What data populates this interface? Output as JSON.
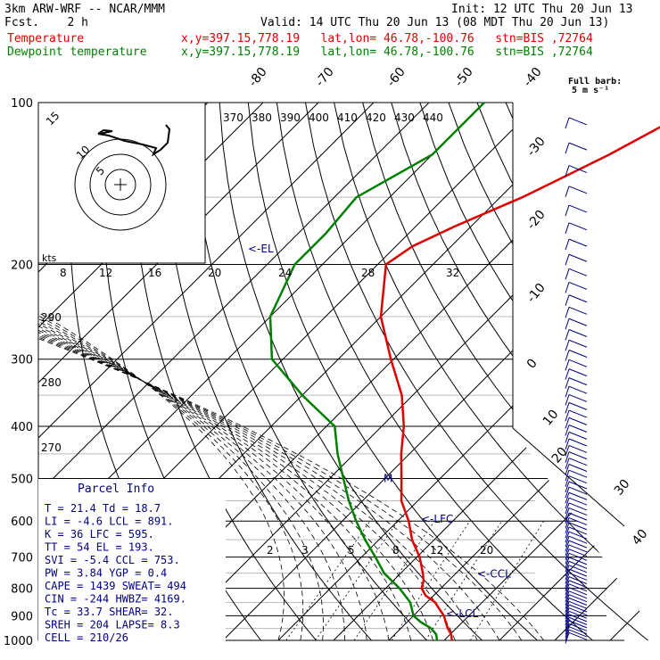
{
  "header": {
    "model": "3km ARW-WRF -- NCAR/MMM",
    "fcst": "Fcst.    2 h",
    "init": "Init: 12 UTC Thu 20 Jun 13",
    "valid": "Valid: 14 UTC Thu 20 Jun 13 (08 MDT Thu 20 Jun 13)",
    "temp_label": "Temperature",
    "dew_label": "Dewpoint temperature",
    "loc_info": "x,y=397.15,778.19   lat,lon= 46.78,-100.76   stn=BIS ,72764"
  },
  "colors": {
    "temperature": "#e00000",
    "dewpoint": "#008000",
    "annotations": "#000080"
  },
  "barb_legend": {
    "title": "Full barb:",
    "value": "5 m s⁻¹"
  },
  "annotations": {
    "el": "<-EL",
    "lfc": "<-LFC",
    "ccl": "<-CCL",
    "lcl": "<-LCL",
    "m": "M"
  },
  "hodograph": {
    "label": "kts",
    "rings": [
      "5",
      "10",
      "15"
    ]
  },
  "parcel_info": {
    "title": "Parcel Info",
    "rows": [
      "T  =   21.4  Td =  18.7",
      "LI =   -4.6  LCL =  891.",
      "K  =     36  LFC =  595.",
      "TT =     54  EL  =  193.",
      "SVI =  -5.4  CCL =  753.",
      "PW =   3.84  YGP =   0.4",
      "CAPE =  1439  SWEAT=  494",
      "CIN =   -244  HWBZ= 4169.",
      "Tc =   33.7  SHEAR=   32.",
      "SREH =   204  LAPSE=   8.3",
      "CELL = 210/26"
    ]
  },
  "chart_data": {
    "type": "skew-t",
    "yscale": "log",
    "pressure_ticks": [
      "100",
      "200",
      "300",
      "400",
      "500",
      "600",
      "700",
      "800",
      "900",
      "1000"
    ],
    "isotherm_labels": [
      "-80",
      "-70",
      "-60",
      "-50",
      "-40",
      "-30",
      "-20",
      "-10",
      "0",
      "10",
      "20",
      "30",
      "40"
    ],
    "theta_labels": [
      "370",
      "380",
      "390",
      "400",
      "410",
      "420",
      "430",
      "440"
    ],
    "mixing_ratio_labels": [
      "8",
      "12",
      "16",
      "20",
      "24",
      "28",
      "32"
    ],
    "mixing_ratio_labels_low": [
      "2",
      "3",
      "5",
      "8",
      "12",
      "20"
    ],
    "dry_adiabat_labels": [
      "290",
      "280",
      "270"
    ],
    "series": [
      {
        "name": "Temperature",
        "points": [
          [
            1000,
            21.4
          ],
          [
            975,
            20.2
          ],
          [
            950,
            18.5
          ],
          [
            925,
            17.0
          ],
          [
            900,
            15.5
          ],
          [
            875,
            13.5
          ],
          [
            850,
            11.5
          ],
          [
            825,
            8.5
          ],
          [
            800,
            6.5
          ],
          [
            775,
            5.5
          ],
          [
            750,
            4.0
          ],
          [
            700,
            0.5
          ],
          [
            650,
            -4.0
          ],
          [
            600,
            -8.0
          ],
          [
            550,
            -13.0
          ],
          [
            500,
            -17.0
          ],
          [
            450,
            -21.5
          ],
          [
            400,
            -26.0
          ],
          [
            350,
            -32.0
          ],
          [
            300,
            -40.5
          ],
          [
            250,
            -50.0
          ],
          [
            200,
            -58.5
          ],
          [
            185,
            -57.0
          ],
          [
            170,
            -53.0
          ],
          [
            150,
            -46.0
          ],
          [
            125,
            -38.0
          ],
          [
            100,
            -30.0
          ]
        ]
      },
      {
        "name": "Dewpoint temperature",
        "points": [
          [
            1000,
            18.7
          ],
          [
            975,
            17.5
          ],
          [
            950,
            15.5
          ],
          [
            925,
            12.5
          ],
          [
            900,
            10.0
          ],
          [
            850,
            7.0
          ],
          [
            800,
            2.5
          ],
          [
            750,
            -3.0
          ],
          [
            700,
            -7.5
          ],
          [
            650,
            -12.5
          ],
          [
            600,
            -17.5
          ],
          [
            550,
            -22.5
          ],
          [
            500,
            -27.5
          ],
          [
            450,
            -33.0
          ],
          [
            400,
            -38.5
          ],
          [
            350,
            -50.0
          ],
          [
            300,
            -62.0
          ],
          [
            250,
            -70.0
          ],
          [
            200,
            -75.0
          ],
          [
            175,
            -75.0
          ],
          [
            150,
            -76.0
          ],
          [
            125,
            -70.0
          ],
          [
            100,
            -70.0
          ]
        ]
      }
    ]
  }
}
